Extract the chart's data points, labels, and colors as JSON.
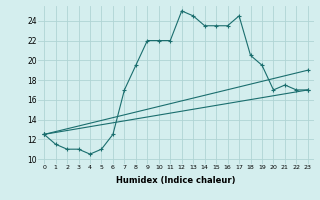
{
  "xlabel": "Humidex (Indice chaleur)",
  "xlim": [
    -0.5,
    23.5
  ],
  "ylim": [
    9.5,
    25.5
  ],
  "xticks": [
    0,
    1,
    2,
    3,
    4,
    5,
    6,
    7,
    8,
    9,
    10,
    11,
    12,
    13,
    14,
    15,
    16,
    17,
    18,
    19,
    20,
    21,
    22,
    23
  ],
  "yticks": [
    10,
    12,
    14,
    16,
    18,
    20,
    22,
    24
  ],
  "bg_color": "#d4eeee",
  "grid_color": "#b0d4d4",
  "line_color": "#1a6e6e",
  "line1_x": [
    0,
    1,
    2,
    3,
    4,
    5,
    6,
    7,
    8,
    9,
    10,
    11,
    12,
    13,
    14,
    15,
    16,
    17,
    18,
    19,
    20,
    21,
    22,
    23
  ],
  "line1_y": [
    12.5,
    11.5,
    11.0,
    11.0,
    10.5,
    11.0,
    12.5,
    17.0,
    19.5,
    22.0,
    22.0,
    22.0,
    25.0,
    24.5,
    23.5,
    23.5,
    23.5,
    24.5,
    20.5,
    19.5,
    17.0,
    17.5,
    17.0,
    17.0
  ],
  "line2_x": [
    0,
    23
  ],
  "line2_y": [
    12.5,
    19.0
  ],
  "line3_x": [
    0,
    23
  ],
  "line3_y": [
    12.5,
    17.0
  ]
}
